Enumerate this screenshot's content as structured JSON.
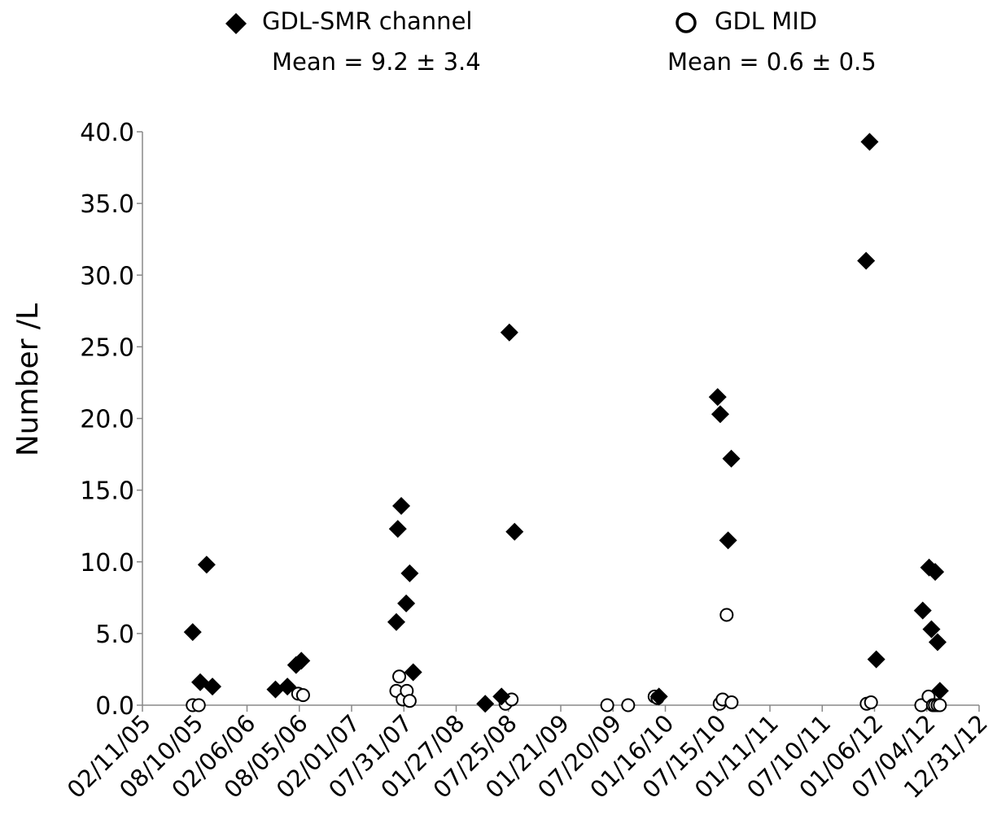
{
  "chart_data": {
    "type": "scatter",
    "title": "",
    "xlabel": "",
    "ylabel": "Number /L",
    "ylim": [
      0,
      40
    ],
    "yticks": [
      "0.0",
      "5.0",
      "10.0",
      "15.0",
      "20.0",
      "25.0",
      "30.0",
      "35.0",
      "40.0"
    ],
    "xlim": [
      "02/11/05",
      "12/31/12"
    ],
    "xticks": [
      "02/11/05",
      "08/10/05",
      "02/06/06",
      "08/05/06",
      "02/01/07",
      "07/31/07",
      "01/27/08",
      "07/25/08",
      "01/21/09",
      "07/20/09",
      "01/16/10",
      "07/15/10",
      "01/11/11",
      "07/10/11",
      "01/06/12",
      "07/04/12",
      "12/31/12"
    ],
    "grid": false,
    "legend_position": "top",
    "series": [
      {
        "name": "GDL-SMR channel",
        "marker": "filled-diamond",
        "color": "#000000",
        "annotation": "Mean = 9.2 ± 3.4",
        "points": [
          {
            "x": "2005-08-03",
            "y": 5.1
          },
          {
            "x": "2005-08-29",
            "y": 1.6
          },
          {
            "x": "2005-09-20",
            "y": 9.8
          },
          {
            "x": "2005-10-10",
            "y": 1.3
          },
          {
            "x": "2006-05-15",
            "y": 1.1
          },
          {
            "x": "2006-06-25",
            "y": 1.3
          },
          {
            "x": "2006-07-25",
            "y": 2.8
          },
          {
            "x": "2006-08-12",
            "y": 3.1
          },
          {
            "x": "2007-07-05",
            "y": 5.8
          },
          {
            "x": "2007-07-10",
            "y": 12.3
          },
          {
            "x": "2007-07-22",
            "y": 13.9
          },
          {
            "x": "2007-08-08",
            "y": 7.1
          },
          {
            "x": "2007-08-20",
            "y": 9.2
          },
          {
            "x": "2007-09-01",
            "y": 2.3
          },
          {
            "x": "2008-05-06",
            "y": 0.1
          },
          {
            "x": "2008-07-01",
            "y": 0.6
          },
          {
            "x": "2008-07-28",
            "y": 26.0
          },
          {
            "x": "2008-08-15",
            "y": 12.1
          },
          {
            "x": "2009-12-25",
            "y": 0.6
          },
          {
            "x": "2010-07-15",
            "y": 21.5
          },
          {
            "x": "2010-07-24",
            "y": 20.3
          },
          {
            "x": "2010-08-20",
            "y": 11.5
          },
          {
            "x": "2010-08-31",
            "y": 17.2
          },
          {
            "x": "2011-12-08",
            "y": 31.0
          },
          {
            "x": "2011-12-20",
            "y": 39.3
          },
          {
            "x": "2012-01-12",
            "y": 3.2
          },
          {
            "x": "2012-06-20",
            "y": 6.6
          },
          {
            "x": "2012-07-12",
            "y": 9.6
          },
          {
            "x": "2012-07-20",
            "y": 5.3
          },
          {
            "x": "2012-08-02",
            "y": 9.3
          },
          {
            "x": "2012-08-10",
            "y": 4.4
          },
          {
            "x": "2012-08-18",
            "y": 1.0
          }
        ]
      },
      {
        "name": "GDL MID",
        "marker": "open-circle",
        "color": "#000000",
        "annotation": "Mean = 0.6 ± 0.5",
        "points": [
          {
            "x": "2005-08-03",
            "y": 0.0
          },
          {
            "x": "2005-08-24",
            "y": 0.0
          },
          {
            "x": "2006-08-01",
            "y": 0.8
          },
          {
            "x": "2006-08-18",
            "y": 0.7
          },
          {
            "x": "2007-07-05",
            "y": 1.0
          },
          {
            "x": "2007-07-15",
            "y": 2.0
          },
          {
            "x": "2007-07-27",
            "y": 0.4
          },
          {
            "x": "2007-08-10",
            "y": 1.0
          },
          {
            "x": "2007-08-20",
            "y": 0.3
          },
          {
            "x": "2008-07-15",
            "y": 0.1
          },
          {
            "x": "2008-08-05",
            "y": 0.4
          },
          {
            "x": "2009-06-30",
            "y": 0.0
          },
          {
            "x": "2009-09-10",
            "y": 0.0
          },
          {
            "x": "2009-12-10",
            "y": 0.6
          },
          {
            "x": "2009-12-20",
            "y": 0.5
          },
          {
            "x": "2010-07-22",
            "y": 0.1
          },
          {
            "x": "2010-08-01",
            "y": 0.4
          },
          {
            "x": "2010-08-15",
            "y": 6.3
          },
          {
            "x": "2010-09-01",
            "y": 0.2
          },
          {
            "x": "2011-12-10",
            "y": 0.1
          },
          {
            "x": "2011-12-25",
            "y": 0.2
          },
          {
            "x": "2012-06-15",
            "y": 0.0
          },
          {
            "x": "2012-07-10",
            "y": 0.6
          },
          {
            "x": "2012-07-25",
            "y": 0.0
          },
          {
            "x": "2012-08-01",
            "y": 0.0
          },
          {
            "x": "2012-08-10",
            "y": 0.0
          },
          {
            "x": "2012-08-18",
            "y": 0.0
          }
        ]
      }
    ]
  }
}
